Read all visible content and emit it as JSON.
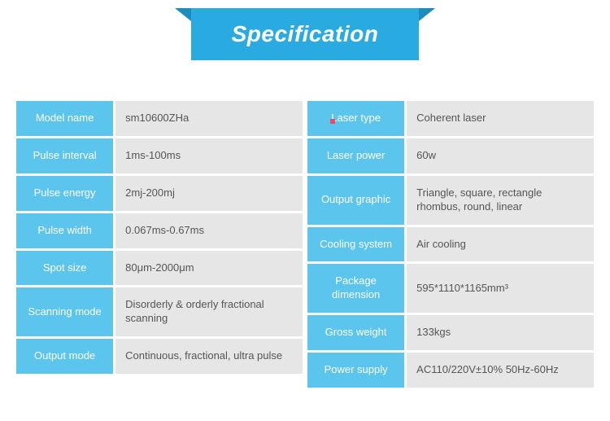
{
  "title": "Specification",
  "colors": {
    "banner_bg": "#29abe2",
    "banner_fold": "#1a8cc0",
    "banner_text": "#ffffff",
    "label_bg": "#5cc5ed",
    "label_text": "#ffffff",
    "value_bg": "#e6e6e6",
    "value_text": "#555555",
    "accent": "#e94b6a"
  },
  "left": {
    "rows": [
      {
        "label": "Model name",
        "value": "sm10600ZHa"
      },
      {
        "label": "Pulse interval",
        "value": "1ms-100ms"
      },
      {
        "label": "Pulse energy",
        "value": "2mj-200mj"
      },
      {
        "label": "Pulse width",
        "value": "0.067ms-0.67ms"
      },
      {
        "label": "Spot size",
        "value": "80μm-2000μm"
      },
      {
        "label": "Scanning mode",
        "value": "Disorderly & orderly fractional scanning"
      },
      {
        "label": "Output mode",
        "value": "Continuous, fractional, ultra pulse"
      }
    ]
  },
  "right": {
    "rows": [
      {
        "label": "Laser type",
        "value": "Coherent laser"
      },
      {
        "label": "Laser power",
        "value": "60w"
      },
      {
        "label": "Output graphic",
        "value": "Triangle, square, rectangle rhombus, round, linear"
      },
      {
        "label": "Cooling system",
        "value": "Air cooling"
      },
      {
        "label": "Package dimension",
        "value": "595*1110*1165mm³"
      },
      {
        "label": "Gross weight",
        "value": "133kgs"
      },
      {
        "label": "Power supply",
        "value": "AC110/220V±10% 50Hz-60Hz"
      }
    ]
  }
}
